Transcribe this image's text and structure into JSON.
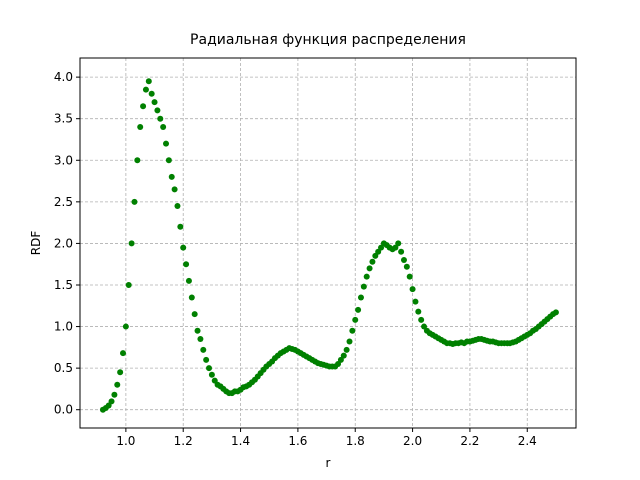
{
  "chart_data": {
    "type": "scatter",
    "title": "Радиальная функция распределения",
    "x_label": "r",
    "y_label": "RDF",
    "color": "#008000",
    "grid": true,
    "xlim": [
      0.84,
      2.57
    ],
    "ylim": [
      -0.22,
      4.23
    ],
    "xticks": [
      {
        "value": 1.0,
        "label": "1.0"
      },
      1.2,
      1.4,
      1.6,
      1.8,
      {
        "value": 2.0,
        "label": "2.0"
      },
      2.2,
      2.4
    ],
    "yticks": [
      {
        "value": 0.0,
        "label": "0.0"
      },
      0.5,
      {
        "value": 1.0,
        "label": "1.0"
      },
      1.5,
      {
        "value": 2.0,
        "label": "2.0"
      },
      2.5,
      {
        "value": 3.0,
        "label": "3.0"
      },
      3.5,
      {
        "value": 4.0,
        "label": "4.0"
      }
    ],
    "x": [
      0.92,
      0.93,
      0.94,
      0.95,
      0.96,
      0.97,
      0.98,
      0.99,
      1.0,
      1.01,
      1.02,
      1.03,
      1.04,
      1.05,
      1.06,
      1.07,
      1.08,
      1.09,
      1.1,
      1.11,
      1.12,
      1.13,
      1.14,
      1.15,
      1.16,
      1.17,
      1.18,
      1.19,
      1.2,
      1.21,
      1.22,
      1.23,
      1.24,
      1.25,
      1.26,
      1.27,
      1.28,
      1.29,
      1.3,
      1.31,
      1.32,
      1.33,
      1.34,
      1.35,
      1.36,
      1.37,
      1.38,
      1.39,
      1.4,
      1.41,
      1.42,
      1.43,
      1.44,
      1.45,
      1.46,
      1.47,
      1.48,
      1.49,
      1.5,
      1.51,
      1.52,
      1.53,
      1.54,
      1.55,
      1.56,
      1.57,
      1.58,
      1.59,
      1.6,
      1.61,
      1.62,
      1.63,
      1.64,
      1.65,
      1.66,
      1.67,
      1.68,
      1.69,
      1.7,
      1.71,
      1.72,
      1.73,
      1.74,
      1.75,
      1.76,
      1.77,
      1.78,
      1.79,
      1.8,
      1.81,
      1.82,
      1.83,
      1.84,
      1.85,
      1.86,
      1.87,
      1.88,
      1.89,
      1.9,
      1.91,
      1.92,
      1.93,
      1.94,
      1.95,
      1.96,
      1.97,
      1.98,
      1.99,
      2.0,
      2.01,
      2.02,
      2.03,
      2.04,
      2.05,
      2.06,
      2.07,
      2.08,
      2.09,
      2.1,
      2.11,
      2.12,
      2.13,
      2.14,
      2.15,
      2.16,
      2.17,
      2.18,
      2.19,
      2.2,
      2.21,
      2.22,
      2.23,
      2.24,
      2.25,
      2.26,
      2.27,
      2.28,
      2.29,
      2.3,
      2.31,
      2.32,
      2.33,
      2.34,
      2.35,
      2.36,
      2.37,
      2.38,
      2.39,
      2.4,
      2.41,
      2.42,
      2.43,
      2.44,
      2.45,
      2.46,
      2.47,
      2.48,
      2.49,
      2.5
    ],
    "values": [
      0.0,
      0.02,
      0.05,
      0.1,
      0.18,
      0.3,
      0.45,
      0.68,
      1.0,
      1.5,
      2.0,
      2.5,
      3.0,
      3.4,
      3.65,
      3.85,
      3.95,
      3.8,
      3.7,
      3.6,
      3.5,
      3.4,
      3.2,
      3.0,
      2.8,
      2.65,
      2.45,
      2.2,
      1.95,
      1.75,
      1.55,
      1.35,
      1.15,
      0.95,
      0.85,
      0.72,
      0.6,
      0.5,
      0.42,
      0.35,
      0.3,
      0.28,
      0.25,
      0.22,
      0.2,
      0.2,
      0.22,
      0.22,
      0.24,
      0.27,
      0.28,
      0.3,
      0.33,
      0.36,
      0.4,
      0.44,
      0.48,
      0.52,
      0.55,
      0.58,
      0.62,
      0.65,
      0.68,
      0.7,
      0.72,
      0.74,
      0.73,
      0.72,
      0.7,
      0.68,
      0.66,
      0.64,
      0.62,
      0.6,
      0.58,
      0.56,
      0.55,
      0.54,
      0.53,
      0.52,
      0.52,
      0.52,
      0.55,
      0.6,
      0.65,
      0.72,
      0.82,
      0.95,
      1.08,
      1.2,
      1.35,
      1.48,
      1.6,
      1.7,
      1.78,
      1.85,
      1.9,
      1.95,
      2.0,
      1.98,
      1.95,
      1.93,
      1.95,
      2.0,
      1.9,
      1.8,
      1.72,
      1.6,
      1.45,
      1.3,
      1.18,
      1.08,
      1.0,
      0.95,
      0.92,
      0.9,
      0.88,
      0.86,
      0.84,
      0.82,
      0.8,
      0.8,
      0.79,
      0.8,
      0.8,
      0.81,
      0.8,
      0.82,
      0.82,
      0.83,
      0.84,
      0.85,
      0.85,
      0.84,
      0.83,
      0.82,
      0.82,
      0.81,
      0.8,
      0.8,
      0.8,
      0.8,
      0.8,
      0.81,
      0.82,
      0.84,
      0.86,
      0.88,
      0.9,
      0.92,
      0.95,
      0.97,
      1.0,
      1.03,
      1.06,
      1.09,
      1.12,
      1.15,
      1.17
    ]
  }
}
